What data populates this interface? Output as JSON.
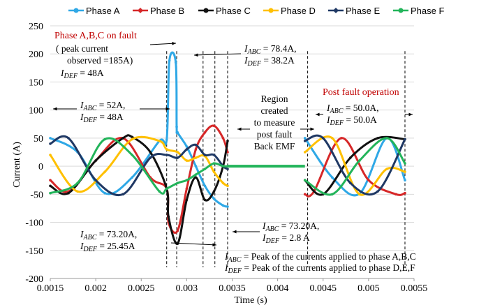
{
  "chart_data": {
    "type": "line",
    "xlabel": "Time (s)",
    "ylabel": "Current (A)",
    "xlim": [
      0.0015,
      0.0055
    ],
    "ylim": [
      -200,
      250
    ],
    "x_ticks": [
      "0.0015",
      "0.002",
      "0.0025",
      "0.003",
      "0.0035",
      "0.004",
      "0.0045",
      "0.005",
      "0.0055"
    ],
    "y_ticks": [
      "250",
      "200",
      "150",
      "100",
      "50",
      "0",
      "-50",
      "-100",
      "-150",
      "-200"
    ],
    "grid": "horizontal",
    "legend_position": "top",
    "series": [
      {
        "name": "Phase A",
        "color": "#2fa8e6",
        "marker": "circle",
        "x": [
          0.0015,
          0.0018,
          0.0021,
          0.0024,
          0.0027,
          0.00278,
          0.00281,
          0.00288,
          0.00289,
          0.0029,
          0.003,
          0.0031,
          0.0032,
          0.0033,
          0.0034,
          0.00345,
          0.0043,
          0.0046,
          0.0049,
          0.0052,
          0.0054
        ],
        "y": [
          50,
          25,
          -48,
          -20,
          45,
          47,
          188,
          185,
          70,
          60,
          35,
          0,
          -35,
          -58,
          -70,
          -72,
          50,
          -20,
          -49,
          50,
          -25
        ]
      },
      {
        "name": "Phase B",
        "color": "#d62728",
        "marker": "diamond",
        "x": [
          0.0015,
          0.0017,
          0.002,
          0.0023,
          0.0026,
          0.00278,
          0.0028,
          0.0029,
          0.003,
          0.0031,
          0.0032,
          0.0033,
          0.0034,
          0.00345,
          0.0043,
          0.0044,
          0.0047,
          0.005,
          0.0053,
          0.0054
        ],
        "y": [
          -25,
          -45,
          10,
          50,
          -20,
          -40,
          -100,
          -115,
          -40,
          30,
          60,
          72,
          50,
          25,
          -50,
          -45,
          50,
          -25,
          -50,
          -48
        ]
      },
      {
        "name": "Phase C",
        "color": "#111111",
        "marker": "circle",
        "x": [
          0.0015,
          0.0017,
          0.002,
          0.0023,
          0.0024,
          0.0026,
          0.00278,
          0.0028,
          0.0029,
          0.003,
          0.0031,
          0.0032,
          0.0033,
          0.0034,
          0.00345,
          0.0043,
          0.0045,
          0.0048,
          0.0051,
          0.0054
        ],
        "y": [
          -35,
          -48,
          10,
          50,
          52,
          25,
          -40,
          -90,
          -138,
          -60,
          -20,
          -60,
          -45,
          0,
          45,
          -25,
          -50,
          15,
          50,
          48
        ]
      },
      {
        "name": "Phase D",
        "color": "#ffc000",
        "marker": "circle",
        "x": [
          0.0015,
          0.0018,
          0.0021,
          0.0024,
          0.0027,
          0.00278,
          0.0029,
          0.003,
          0.0031,
          0.0032,
          0.0033,
          0.0034,
          0.00345,
          0.0043,
          0.0046,
          0.0049,
          0.0052,
          0.0054
        ],
        "y": [
          20,
          -45,
          -10,
          48,
          45,
          30,
          25,
          10,
          15,
          18,
          -10,
          -30,
          -35,
          25,
          50,
          -50,
          -5,
          -10
        ]
      },
      {
        "name": "Phase E",
        "color": "#1f3864",
        "marker": "diamond",
        "x": [
          0.0015,
          0.0017,
          0.002,
          0.0023,
          0.0026,
          0.00278,
          0.0029,
          0.003,
          0.0031,
          0.0032,
          0.0033,
          0.0034,
          0.00345,
          0.0043,
          0.0045,
          0.0048,
          0.0051,
          0.0054
        ],
        "y": [
          40,
          50,
          -25,
          -50,
          15,
          20,
          15,
          30,
          38,
          20,
          20,
          0,
          -5,
          45,
          50,
          -30,
          -45,
          48
        ]
      },
      {
        "name": "Phase F",
        "color": "#22b45a",
        "marker": "circle",
        "x": [
          0.0015,
          0.0018,
          0.0021,
          0.0024,
          0.0027,
          0.00278,
          0.0029,
          0.003,
          0.0031,
          0.0032,
          0.0033,
          0.0034,
          0.00345,
          0.0043,
          0.0046,
          0.0049,
          0.0052,
          0.0054
        ],
        "y": [
          -48,
          -30,
          48,
          20,
          -45,
          -40,
          -30,
          -25,
          -15,
          -5,
          5,
          0,
          0,
          -25,
          -50,
          10,
          50,
          5
        ]
      }
    ],
    "zero_segment": {
      "x": [
        0.00345,
        0.0043
      ],
      "y": 0
    },
    "annotations": {
      "fault_title": "Phase A,B,C on fault",
      "peak_line1": "( peak current",
      "peak_line2": "observed =185A)",
      "idef_48": "= 48A",
      "iabc_784": "= 78.4A,",
      "idef_382": "= 38.2A",
      "iabc_52": "= 52A,",
      "idef_48b": "= 48A",
      "region1": "Region",
      "region2": "created",
      "region3": "to measure",
      "region4": "post fault",
      "region5": "Back EMF",
      "post_title": "Post fault operation",
      "iabc_50": "= 50.0A,",
      "idef_50": "= 50.0A",
      "iabc_7320a": "= 73.20A,",
      "idef_2545": "= 25.45A",
      "iabc_7320b": "= 73.20A,",
      "idef_28": "= 2.8 A",
      "def_abc": "= Peak of the currents applied to phase A,B,C",
      "def_def": "= Peak of the currents applied to phase D,E,F",
      "sym_I": "I",
      "sub_abc": "ABC",
      "sub_def": "DEF"
    }
  }
}
